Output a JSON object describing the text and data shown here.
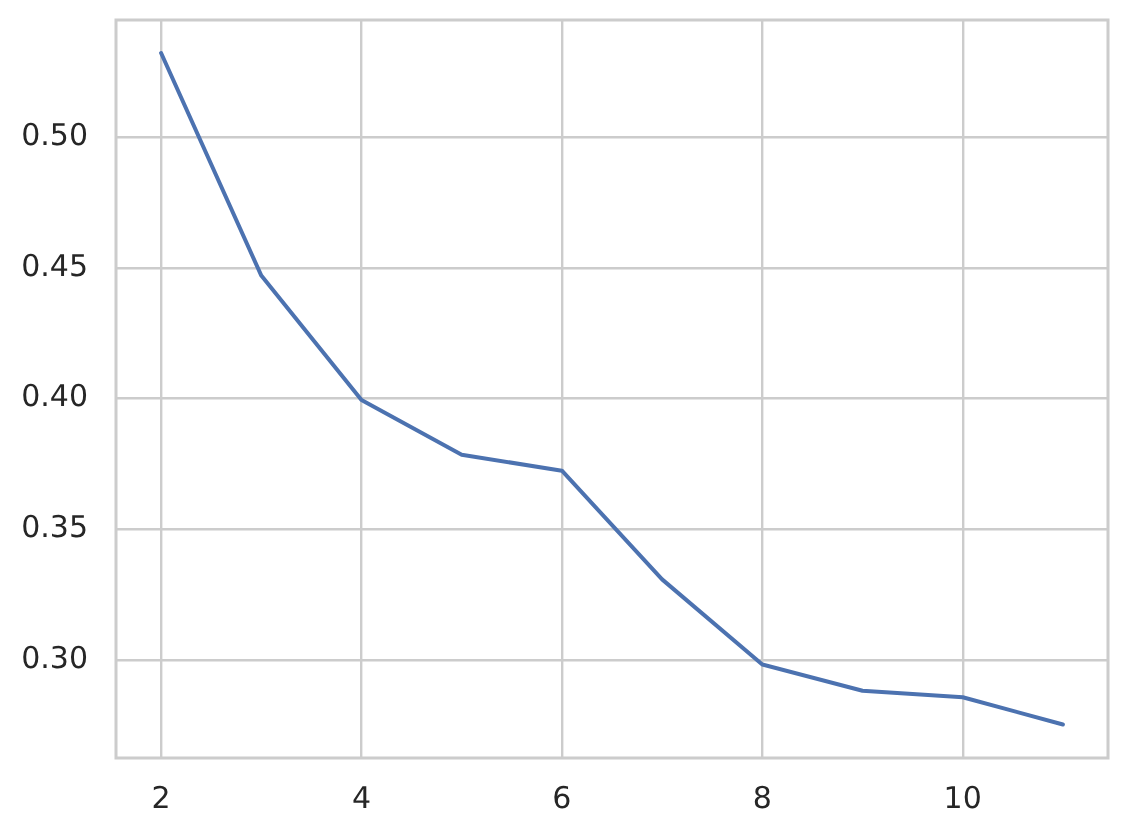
{
  "chart_data": {
    "type": "line",
    "x": [
      2,
      3,
      4,
      5,
      6,
      7,
      8,
      9,
      10,
      11
    ],
    "values": [
      0.532,
      0.447,
      0.3995,
      0.3786,
      0.3725,
      0.331,
      0.2985,
      0.2885,
      0.286,
      0.2756
    ],
    "color": "#4c72b0",
    "xlim": [
      1.55,
      11.45
    ],
    "ylim": [
      0.2628,
      0.5446
    ],
    "xticks": [
      2,
      4,
      6,
      8,
      10
    ],
    "yticks": [
      {
        "value": 0.3,
        "label": "0.30"
      },
      {
        "value": 0.35,
        "label": "0.35"
      },
      {
        "value": 0.4,
        "label": "0.40"
      },
      {
        "value": 0.45,
        "label": "0.45"
      },
      {
        "value": 0.5,
        "label": "0.50"
      }
    ],
    "grid": true
  }
}
